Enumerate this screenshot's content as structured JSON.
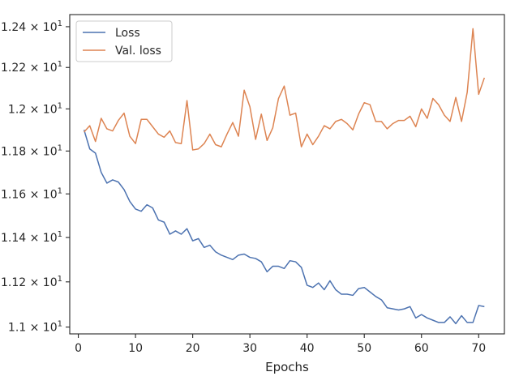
{
  "chart_data": {
    "type": "line",
    "title": "",
    "xlabel": "Epochs",
    "ylabel": "",
    "xlim": [
      -1.5,
      74.5
    ],
    "ylim": [
      10.97,
      12.46
    ],
    "yscale": "log",
    "grid": false,
    "legend_position": "top-left",
    "x_ticks": [
      0,
      10,
      20,
      30,
      40,
      50,
      60,
      70
    ],
    "x_tick_labels": [
      "0",
      "10",
      "20",
      "30",
      "40",
      "50",
      "60",
      "70"
    ],
    "y_ticks": [
      11.0,
      11.2,
      11.4,
      11.6,
      11.8,
      12.0,
      12.2,
      12.4
    ],
    "y_tick_labels": [
      {
        "base": "1.1 × 10",
        "exp": "1"
      },
      {
        "base": "1.12 × 10",
        "exp": "1"
      },
      {
        "base": "1.14 × 10",
        "exp": "1"
      },
      {
        "base": "1.16 × 10",
        "exp": "1"
      },
      {
        "base": "1.18 × 10",
        "exp": "1"
      },
      {
        "base": "1.2 × 10",
        "exp": "1"
      },
      {
        "base": "1.22 × 10",
        "exp": "1"
      },
      {
        "base": "1.24 × 10",
        "exp": "1"
      }
    ],
    "x": [
      1,
      2,
      3,
      4,
      5,
      6,
      7,
      8,
      9,
      10,
      11,
      12,
      13,
      14,
      15,
      16,
      17,
      18,
      19,
      20,
      21,
      22,
      23,
      24,
      25,
      26,
      27,
      28,
      29,
      30,
      31,
      32,
      33,
      34,
      35,
      36,
      37,
      38,
      39,
      40,
      41,
      42,
      43,
      44,
      45,
      46,
      47,
      48,
      49,
      50,
      51,
      52,
      53,
      54,
      55,
      56,
      57,
      58,
      59,
      60,
      61,
      62,
      63,
      64,
      65,
      66,
      67,
      68,
      69,
      70,
      71
    ],
    "series": [
      {
        "name": "Loss",
        "color": "#4c72b0",
        "values": [
          11.9,
          11.81,
          11.79,
          11.7,
          11.65,
          11.665,
          11.655,
          11.62,
          11.565,
          11.53,
          11.52,
          11.55,
          11.535,
          11.48,
          11.47,
          11.415,
          11.43,
          11.415,
          11.44,
          11.385,
          11.395,
          11.355,
          11.365,
          11.335,
          11.32,
          11.31,
          11.3,
          11.32,
          11.325,
          11.31,
          11.305,
          11.29,
          11.245,
          11.27,
          11.27,
          11.26,
          11.295,
          11.29,
          11.265,
          11.185,
          11.175,
          11.195,
          11.165,
          11.205,
          11.165,
          11.145,
          11.145,
          11.14,
          11.17,
          11.175,
          11.155,
          11.135,
          11.12,
          11.085,
          11.08,
          11.075,
          11.08,
          11.09,
          11.04,
          11.055,
          11.04,
          11.03,
          11.02,
          11.02,
          11.045,
          11.015,
          11.05,
          11.02,
          11.02,
          11.095,
          11.09
        ]
      },
      {
        "name": "Val. loss",
        "color": "#dd8452",
        "values": [
          11.89,
          11.92,
          11.845,
          11.955,
          11.905,
          11.895,
          11.945,
          11.98,
          11.87,
          11.835,
          11.95,
          11.95,
          11.915,
          11.88,
          11.865,
          11.895,
          11.84,
          11.835,
          12.04,
          11.805,
          11.81,
          11.835,
          11.88,
          11.83,
          11.82,
          11.88,
          11.935,
          11.87,
          12.09,
          12.01,
          11.855,
          11.975,
          11.85,
          11.91,
          12.05,
          12.11,
          11.97,
          11.98,
          11.82,
          11.88,
          11.83,
          11.87,
          11.92,
          11.905,
          11.94,
          11.95,
          11.93,
          11.9,
          11.975,
          12.03,
          12.02,
          11.94,
          11.94,
          11.905,
          11.93,
          11.945,
          11.945,
          11.965,
          11.915,
          12.0,
          11.955,
          12.05,
          12.02,
          11.97,
          11.94,
          12.055,
          11.94,
          12.08,
          12.39,
          12.07,
          12.15
        ]
      }
    ]
  }
}
